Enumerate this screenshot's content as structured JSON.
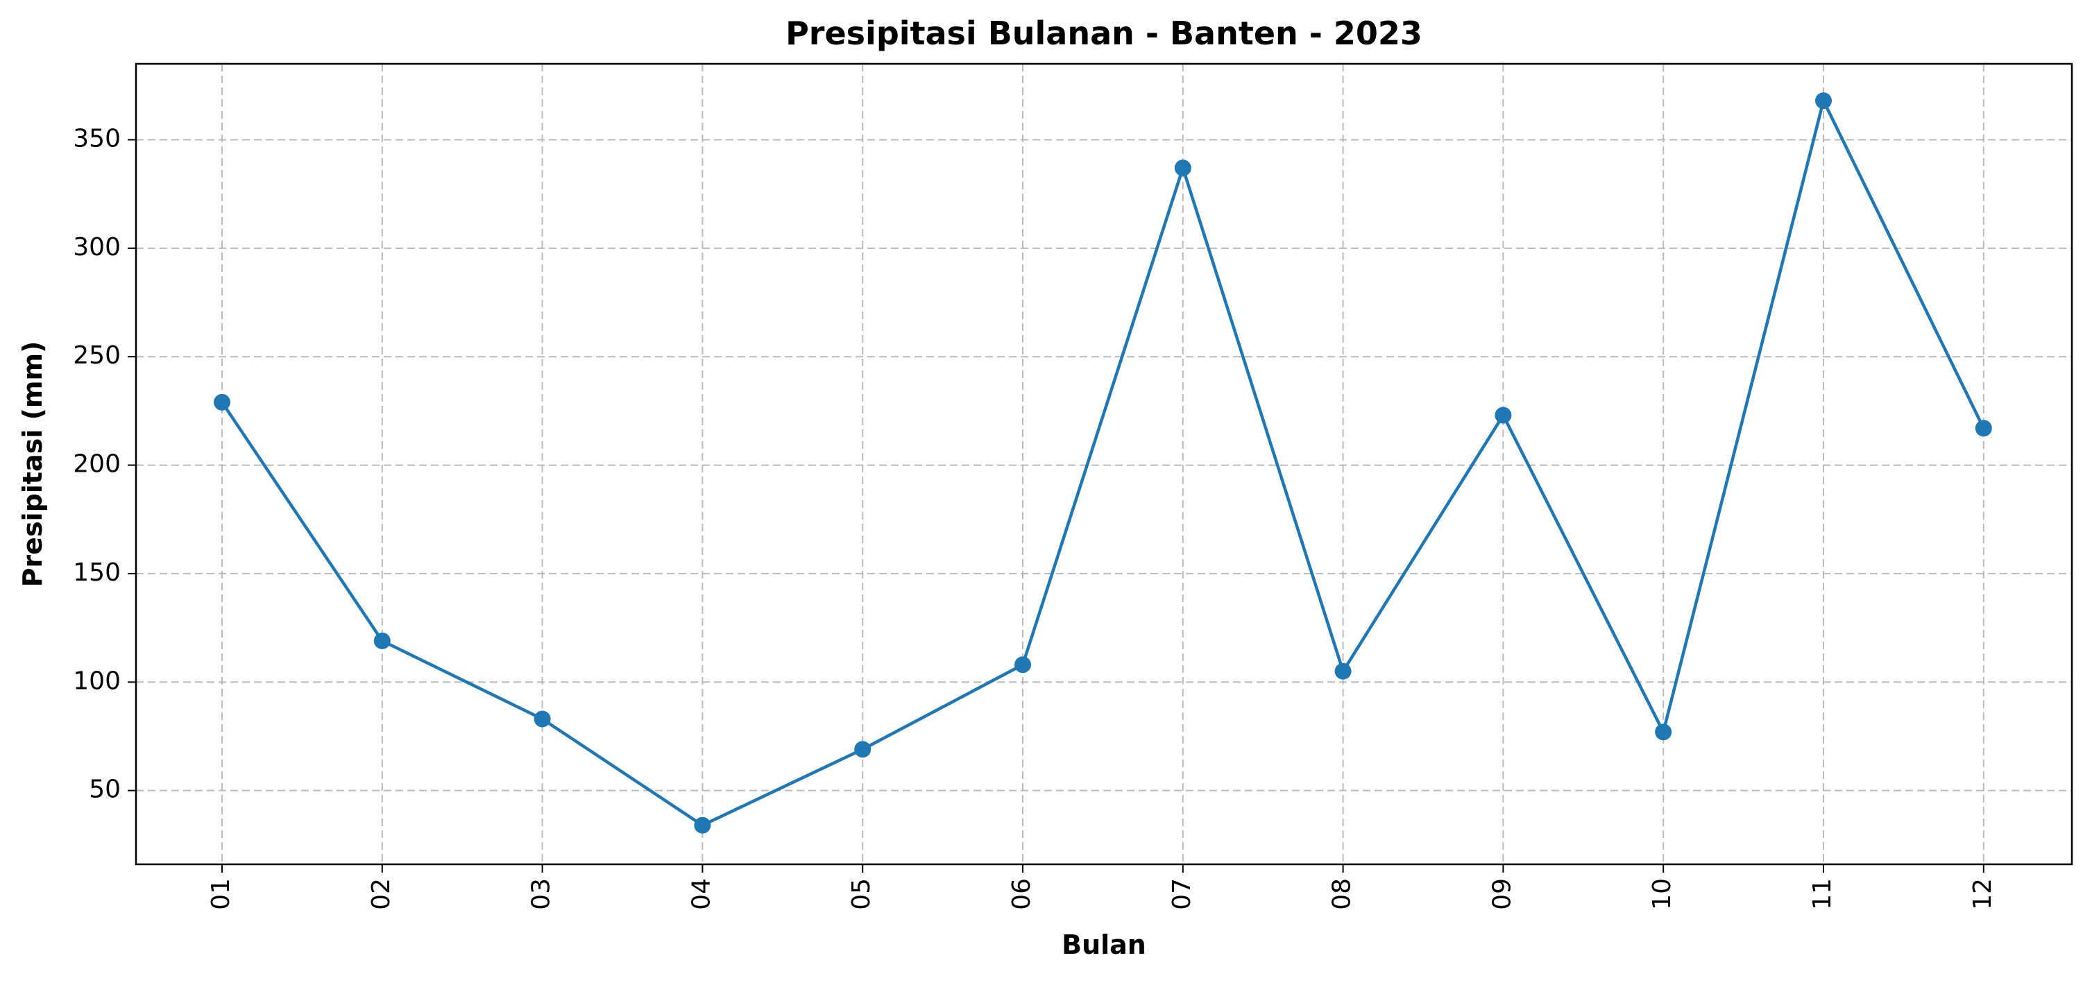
{
  "chart_data": {
    "type": "line",
    "title": "Presipitasi Bulanan - Banten - 2023",
    "xlabel": "Bulan",
    "ylabel": "Presipitasi (mm)",
    "categories": [
      "01",
      "02",
      "03",
      "04",
      "05",
      "06",
      "07",
      "08",
      "09",
      "10",
      "11",
      "12"
    ],
    "series": [
      {
        "values": [
          229,
          119,
          83,
          34,
          69,
          108,
          337,
          105,
          223,
          77,
          368,
          217
        ],
        "color": "#1f77b4",
        "marker": "circle"
      }
    ],
    "yticks": [
      50,
      100,
      150,
      200,
      250,
      300,
      350
    ],
    "ylim": [
      16,
      385
    ],
    "grid": true,
    "grid_style": "dashed",
    "x_tick_rotation": "vertical",
    "legend": "none"
  }
}
